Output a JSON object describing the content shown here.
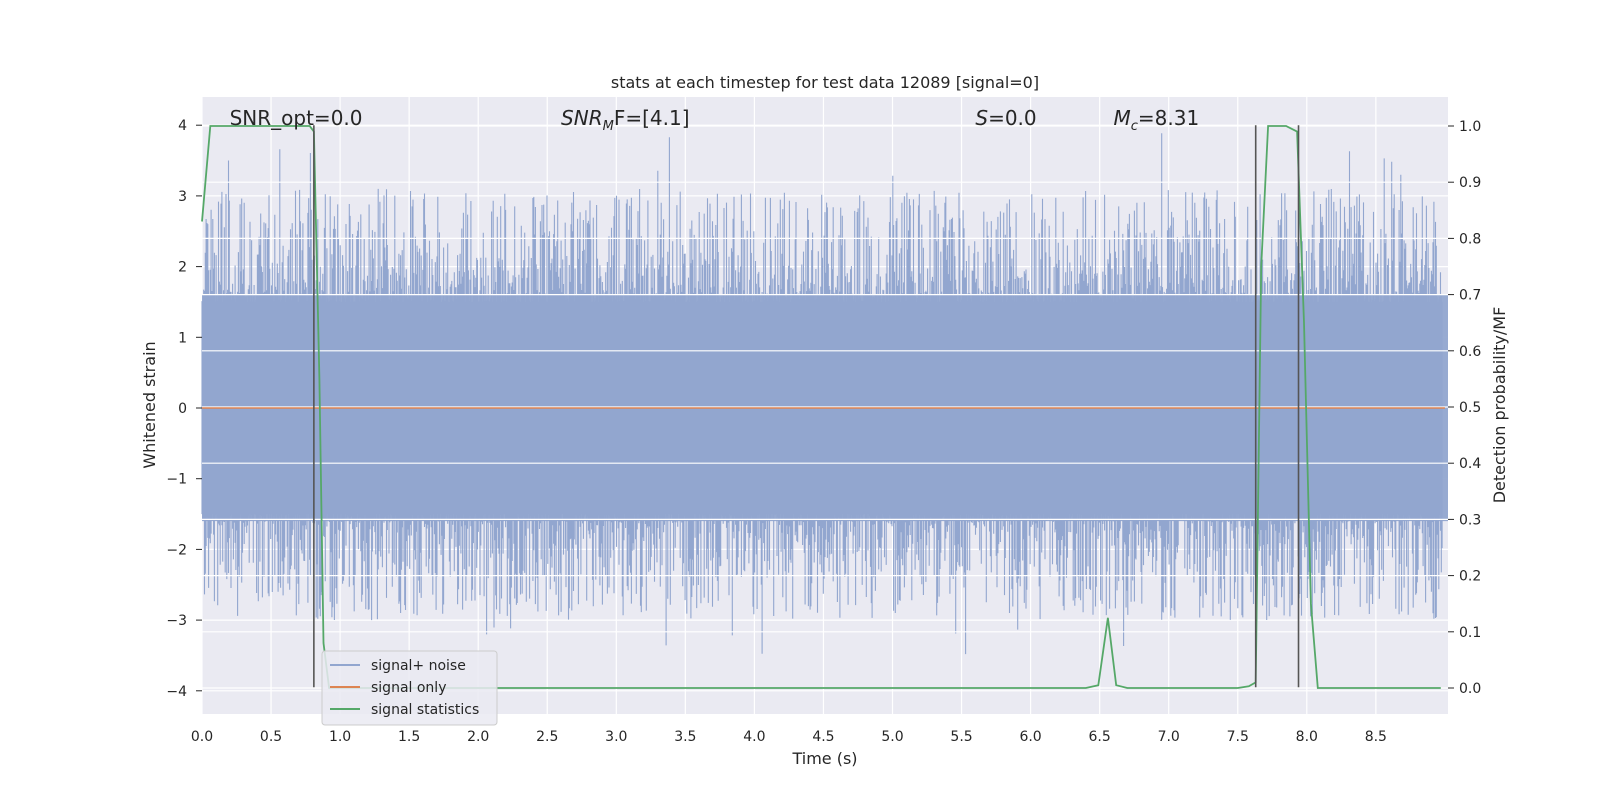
{
  "chart_data": {
    "type": "line",
    "title": "stats at each timestep for test data 12089 [signal=0]",
    "xlabel": "Time (s)",
    "ylabel_left": "Whitened strain",
    "ylabel_right": "Detection probability/MF",
    "xlim": [
      0.0,
      9.0
    ],
    "ylim_left": [
      -4.3,
      4.4
    ],
    "ylim_right": [
      -0.05,
      1.03
    ],
    "x_ticks": [
      "0.0",
      "0.5",
      "1.0",
      "1.5",
      "2.0",
      "2.5",
      "3.0",
      "3.5",
      "4.0",
      "4.5",
      "5.0",
      "5.5",
      "6.0",
      "6.5",
      "7.0",
      "7.5",
      "8.0",
      "8.5"
    ],
    "x_tick_values": [
      0.0,
      0.5,
      1.0,
      1.5,
      2.0,
      2.5,
      3.0,
      3.5,
      4.0,
      4.5,
      5.0,
      5.5,
      6.0,
      6.5,
      7.0,
      7.5,
      8.0,
      8.5
    ],
    "y_left_ticks": [
      "4",
      "3",
      "2",
      "1",
      "0",
      "−1",
      "−2",
      "−3",
      "−4"
    ],
    "y_left_tick_values": [
      4,
      3,
      2,
      1,
      0,
      -1,
      -2,
      -3,
      -4
    ],
    "y_right_ticks": [
      "1.0",
      "0.9",
      "0.8",
      "0.7",
      "0.6",
      "0.5",
      "0.4",
      "0.3",
      "0.2",
      "0.1",
      "0.0"
    ],
    "y_right_tick_values": [
      1.0,
      0.9,
      0.8,
      0.7,
      0.6,
      0.5,
      0.4,
      0.3,
      0.2,
      0.1,
      0.0
    ],
    "grid": true,
    "annotations": [
      {
        "label": "SNR_opt=0.0",
        "italic": false,
        "x": 0.2,
        "y": 4.1
      },
      {
        "label": "SNR",
        "sub": "M",
        "rest": "F=[4.1]",
        "italic": true,
        "x": 2.6,
        "y": 4.1
      },
      {
        "label": "S",
        "rest": "=0.0",
        "italic": true,
        "x": 5.6,
        "y": 4.1
      },
      {
        "label": "M",
        "sub": "c",
        "rest": "=8.31",
        "italic": true,
        "x": 6.6,
        "y": 4.1
      }
    ],
    "vertical_lines": [
      {
        "x": 0.81,
        "ymin": -3.95,
        "ymax": 4.0
      },
      {
        "x": 7.63,
        "ymin": -3.95,
        "ymax": 4.0
      },
      {
        "x": 7.94,
        "ymin": -3.95,
        "ymax": 4.0
      }
    ],
    "series": [
      {
        "name": "signal+ noise",
        "axis": "left",
        "color": "#92a6cf",
        "noise_envelope": {
          "peak_high": 4.0,
          "peak_low": -3.5,
          "typical_high": 2.3,
          "typical_low": -2.3
        }
      },
      {
        "name": "signal only",
        "axis": "left",
        "color": "#dd8452",
        "x": [
          0.0,
          9.0
        ],
        "y": [
          0.0,
          0.0
        ]
      },
      {
        "name": "signal statistics",
        "axis": "right",
        "color": "#55a868",
        "x": [
          0.0,
          0.06,
          0.12,
          0.2,
          0.4,
          0.6,
          0.78,
          0.81,
          0.85,
          0.88,
          0.92,
          1.0,
          1.5,
          2.0,
          3.0,
          4.0,
          5.0,
          6.0,
          6.4,
          6.49,
          6.56,
          6.62,
          6.7,
          7.0,
          7.5,
          7.58,
          7.63,
          7.67,
          7.72,
          7.85,
          7.93,
          7.98,
          8.03,
          8.08,
          8.5,
          8.97
        ],
        "y": [
          0.83,
          1.0,
          1.0,
          1.0,
          1.0,
          1.0,
          1.0,
          0.99,
          0.55,
          0.08,
          0.0,
          0.0,
          0.0,
          0.0,
          0.0,
          0.0,
          0.0,
          0.0,
          0.0,
          0.005,
          0.125,
          0.005,
          0.0,
          0.0,
          0.0,
          0.003,
          0.01,
          0.75,
          1.0,
          1.0,
          0.99,
          0.65,
          0.15,
          0.0,
          0.0,
          0.0
        ]
      }
    ],
    "legend": {
      "position": "lower-left",
      "entries": [
        "signal+ noise",
        "signal only",
        "signal statistics"
      ]
    }
  }
}
